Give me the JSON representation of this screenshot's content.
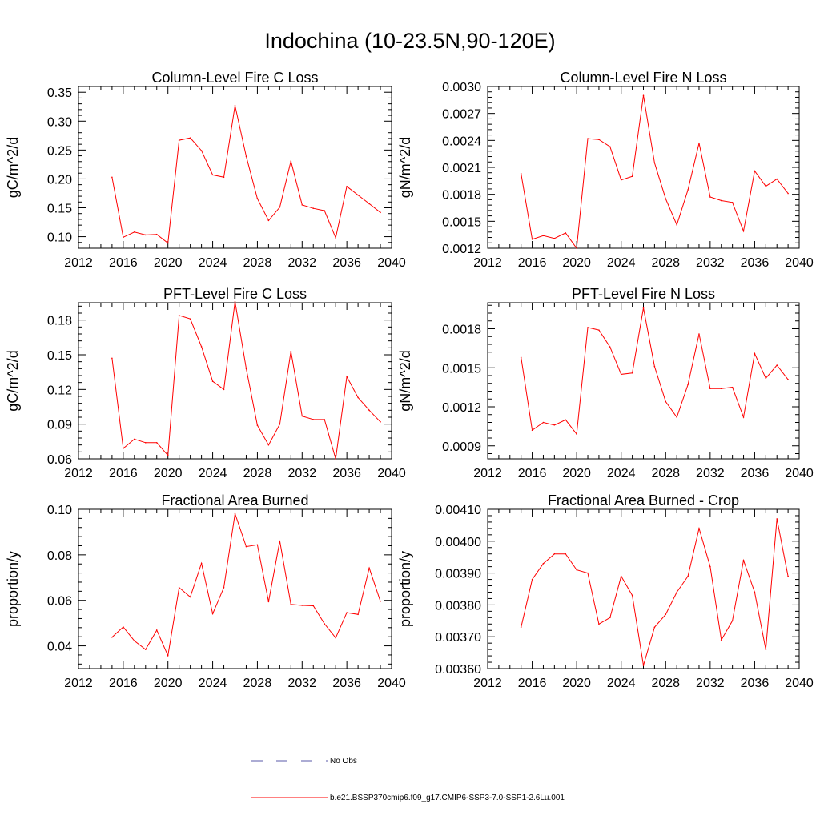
{
  "page_title": "Indochina (10-23.5N,90-120E)",
  "colors": {
    "model_line": "#ff0000",
    "obs_line": "#5a5aa8",
    "axis": "#000000"
  },
  "legend": {
    "items": [
      {
        "label": "No Obs",
        "style": "dashed",
        "color": "#5a5aa8"
      },
      {
        "label": "b.e21.BSSP370cmip6.f09_g17.CMIP6-SSP3-7.0-SSP1-2.6Lu.001",
        "style": "solid",
        "color": "#ff0000"
      }
    ]
  },
  "chart_data": [
    {
      "type": "line",
      "title": "Column-Level Fire C Loss",
      "ylabel": "gC/m^2/d",
      "xlabel": "",
      "xlim": [
        2012,
        2040
      ],
      "ylim": [
        0.08,
        0.36
      ],
      "x_ticks": [
        "2012",
        "2016",
        "2020",
        "2024",
        "2028",
        "2032",
        "2036",
        "2040"
      ],
      "y_ticks": [
        "0.10",
        "0.15",
        "0.20",
        "0.25",
        "0.30",
        "0.35"
      ],
      "x": [
        2015,
        2016,
        2017,
        2018,
        2019,
        2020,
        2021,
        2022,
        2023,
        2024,
        2025,
        2026,
        2027,
        2028,
        2029,
        2030,
        2031,
        2032,
        2033,
        2034,
        2035,
        2036,
        2037,
        2038,
        2039
      ],
      "series": [
        {
          "values": [
            0.203,
            0.099,
            0.108,
            0.103,
            0.104,
            0.089,
            0.267,
            0.271,
            0.249,
            0.207,
            0.203,
            0.327,
            0.239,
            0.166,
            0.128,
            0.151,
            0.231,
            0.155,
            0.149,
            0.145,
            0.098,
            0.187,
            0.172,
            0.157,
            0.142
          ]
        }
      ]
    },
    {
      "type": "line",
      "title": "Column-Level Fire N Loss",
      "ylabel": "gN/m^2/d",
      "xlabel": "",
      "xlim": [
        2012,
        2040
      ],
      "ylim": [
        0.0012,
        0.003
      ],
      "x_ticks": [
        "2012",
        "2016",
        "2020",
        "2024",
        "2028",
        "2032",
        "2036",
        "2040"
      ],
      "y_ticks": [
        "0.0012",
        "0.0015",
        "0.0018",
        "0.0021",
        "0.0024",
        "0.0027",
        "0.0030"
      ],
      "x": [
        2015,
        2016,
        2017,
        2018,
        2019,
        2020,
        2021,
        2022,
        2023,
        2024,
        2025,
        2026,
        2027,
        2028,
        2029,
        2030,
        2031,
        2032,
        2033,
        2034,
        2035,
        2036,
        2037,
        2038,
        2039
      ],
      "series": [
        {
          "values": [
            0.00203,
            0.0013,
            0.00134,
            0.00131,
            0.00137,
            0.0012,
            0.00242,
            0.00241,
            0.00233,
            0.00196,
            0.002,
            0.0029,
            0.00215,
            0.00175,
            0.00146,
            0.00185,
            0.00237,
            0.00177,
            0.00173,
            0.00171,
            0.00139,
            0.00206,
            0.00189,
            0.00197,
            0.00181
          ]
        }
      ]
    },
    {
      "type": "line",
      "title": "PFT-Level Fire C Loss",
      "ylabel": "gC/m^2/d",
      "xlabel": "",
      "xlim": [
        2012,
        2040
      ],
      "ylim": [
        0.06,
        0.195
      ],
      "x_ticks": [
        "2012",
        "2016",
        "2020",
        "2024",
        "2028",
        "2032",
        "2036",
        "2040"
      ],
      "y_ticks": [
        "0.06",
        "0.09",
        "0.12",
        "0.15",
        "0.18"
      ],
      "x": [
        2015,
        2016,
        2017,
        2018,
        2019,
        2020,
        2021,
        2022,
        2023,
        2024,
        2025,
        2026,
        2027,
        2028,
        2029,
        2030,
        2031,
        2032,
        2033,
        2034,
        2035,
        2036,
        2037,
        2038,
        2039
      ],
      "series": [
        {
          "values": [
            0.147,
            0.069,
            0.077,
            0.074,
            0.074,
            0.063,
            0.184,
            0.181,
            0.157,
            0.127,
            0.12,
            0.196,
            0.138,
            0.089,
            0.072,
            0.09,
            0.153,
            0.097,
            0.094,
            0.094,
            0.06,
            0.131,
            0.113,
            0.102,
            0.092
          ]
        }
      ]
    },
    {
      "type": "line",
      "title": "PFT-Level Fire N Loss",
      "ylabel": "gN/m^2/d",
      "xlabel": "",
      "xlim": [
        2012,
        2040
      ],
      "ylim": [
        0.0008,
        0.002
      ],
      "x_ticks": [
        "2012",
        "2016",
        "2020",
        "2024",
        "2028",
        "2032",
        "2036",
        "2040"
      ],
      "y_ticks": [
        "0.0009",
        "0.0012",
        "0.0015",
        "0.0018"
      ],
      "x": [
        2015,
        2016,
        2017,
        2018,
        2019,
        2020,
        2021,
        2022,
        2023,
        2024,
        2025,
        2026,
        2027,
        2028,
        2029,
        2030,
        2031,
        2032,
        2033,
        2034,
        2035,
        2036,
        2037,
        2038,
        2039
      ],
      "series": [
        {
          "values": [
            0.00158,
            0.00102,
            0.00108,
            0.00106,
            0.0011,
            0.00099,
            0.00181,
            0.00179,
            0.00166,
            0.00145,
            0.00146,
            0.00196,
            0.00151,
            0.00124,
            0.00112,
            0.00137,
            0.00176,
            0.00134,
            0.00134,
            0.00135,
            0.00112,
            0.00161,
            0.00142,
            0.00152,
            0.00141
          ]
        }
      ]
    },
    {
      "type": "line",
      "title": "Fractional Area Burned",
      "ylabel": "proportion/y",
      "xlabel": "",
      "xlim": [
        2012,
        2040
      ],
      "ylim": [
        0.03,
        0.1
      ],
      "x_ticks": [
        "2012",
        "2016",
        "2020",
        "2024",
        "2028",
        "2032",
        "2036",
        "2040"
      ],
      "y_ticks": [
        "0.04",
        "0.06",
        "0.08",
        "0.10"
      ],
      "x": [
        2015,
        2016,
        2017,
        2018,
        2019,
        2020,
        2021,
        2022,
        2023,
        2024,
        2025,
        2026,
        2027,
        2028,
        2029,
        2030,
        2031,
        2032,
        2033,
        2034,
        2035,
        2036,
        2037,
        2038,
        2039
      ],
      "series": [
        {
          "values": [
            0.0438,
            0.0483,
            0.0422,
            0.0384,
            0.0469,
            0.0357,
            0.0656,
            0.0615,
            0.0763,
            0.0541,
            0.0656,
            0.0981,
            0.0836,
            0.0844,
            0.0594,
            0.0861,
            0.0582,
            0.0578,
            0.0576,
            0.0497,
            0.0435,
            0.0546,
            0.0538,
            0.0742,
            0.0596
          ]
        }
      ]
    },
    {
      "type": "line",
      "title": "Fractional Area Burned - Crop",
      "ylabel": "proportion/y",
      "xlabel": "",
      "xlim": [
        2012,
        2040
      ],
      "ylim": [
        0.0036,
        0.0041
      ],
      "x_ticks": [
        "2012",
        "2016",
        "2020",
        "2024",
        "2028",
        "2032",
        "2036",
        "2040"
      ],
      "y_ticks": [
        "0.00360",
        "0.00370",
        "0.00380",
        "0.00390",
        "0.00400",
        "0.00410"
      ],
      "x": [
        2015,
        2016,
        2017,
        2018,
        2019,
        2020,
        2021,
        2022,
        2023,
        2024,
        2025,
        2026,
        2027,
        2028,
        2029,
        2030,
        2031,
        2032,
        2033,
        2034,
        2035,
        2036,
        2037,
        2038,
        2039
      ],
      "series": [
        {
          "values": [
            0.00373,
            0.00388,
            0.00393,
            0.00396,
            0.00396,
            0.00391,
            0.0039,
            0.00374,
            0.00376,
            0.00389,
            0.00383,
            0.00361,
            0.00373,
            0.00377,
            0.00384,
            0.00389,
            0.00404,
            0.00392,
            0.00369,
            0.00375,
            0.00394,
            0.00384,
            0.00366,
            0.00407,
            0.00389
          ]
        }
      ]
    }
  ]
}
